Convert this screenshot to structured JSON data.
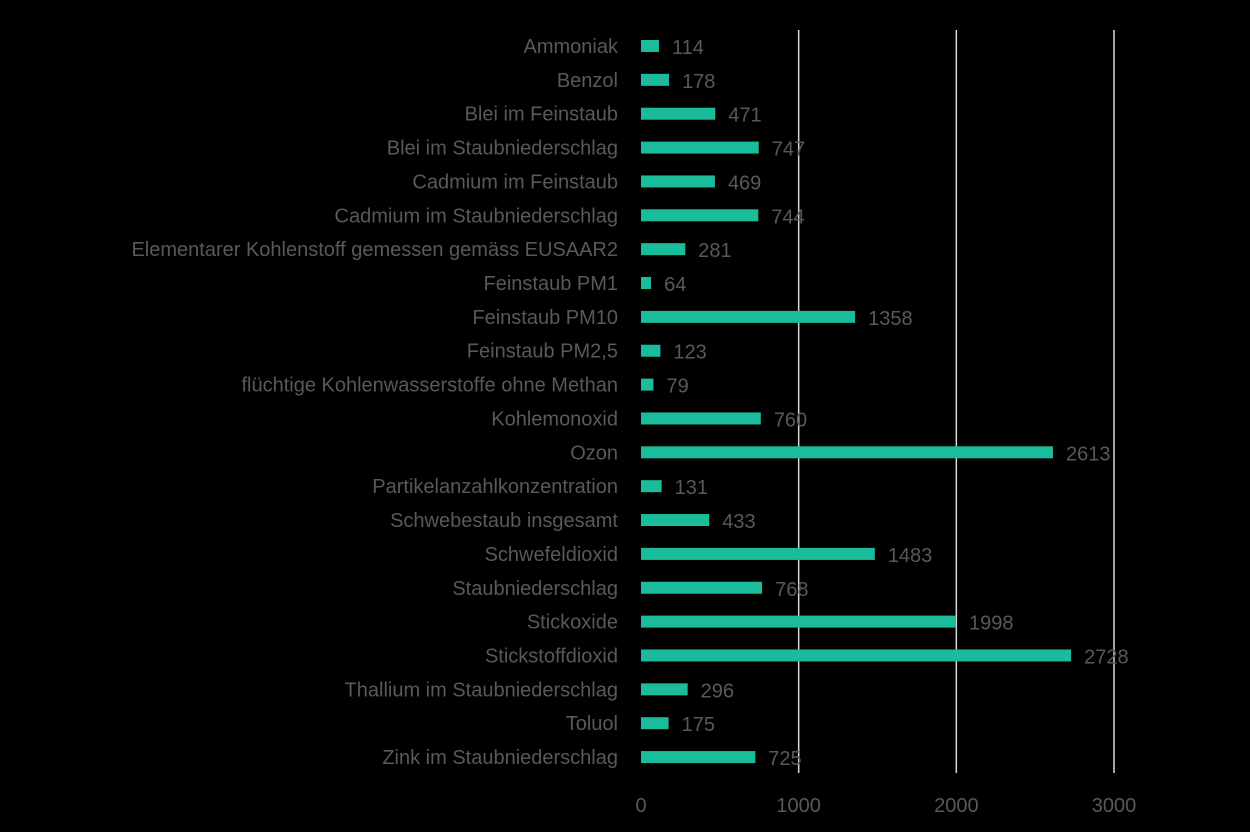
{
  "chart_data": {
    "type": "bar",
    "orientation": "horizontal",
    "categories": [
      "Ammoniak",
      "Benzol",
      "Blei im Feinstaub",
      "Blei im Staubniederschlag",
      "Cadmium im Feinstaub",
      "Cadmium im Staubniederschlag",
      "Elementarer Kohlenstoff gemessen gemäss EUSAAR2",
      "Feinstaub PM1",
      "Feinstaub PM10",
      "Feinstaub PM2,5",
      "flüchtige Kohlenwasserstoffe ohne Methan",
      "Kohlemonoxid",
      "Ozon",
      "Partikelanzahlkonzentration",
      "Schwebestaub insgesamt",
      "Schwefeldioxid",
      "Staubniederschlag",
      "Stickoxide",
      "Stickstoffdioxid",
      "Thallium im Staubniederschlag",
      "Toluol",
      "Zink im Staubniederschlag"
    ],
    "values": [
      114,
      178,
      471,
      747,
      469,
      744,
      281,
      64,
      1358,
      123,
      79,
      760,
      2613,
      131,
      433,
      1483,
      768,
      1998,
      2728,
      296,
      175,
      725
    ],
    "xlim": [
      0,
      3000
    ],
    "xticks": [
      0,
      1000,
      2000,
      3000
    ],
    "grid": true,
    "legend": "none",
    "bar_color": "#1abc9c",
    "grid_color": "#d9d9d9",
    "text_color": "#595959",
    "background": "#000000"
  }
}
